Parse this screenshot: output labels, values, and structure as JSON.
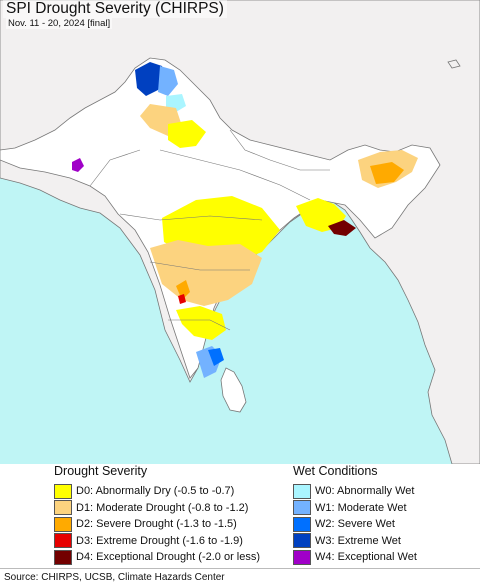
{
  "map": {
    "title": "SPI Drought Severity (CHIRPS)",
    "subtitle": "Nov. 11 - 20, 2024 [final]",
    "colors": {
      "ocean": "#bff5f5",
      "land_outside": "#f2f0f0",
      "land_normal": "#ffffff",
      "border": "#777777"
    }
  },
  "legend": {
    "drought": {
      "title": "Drought Severity",
      "items": [
        {
          "label": "D0: Abnormally Dry (-0.5 to -0.7)",
          "color": "#ffff00"
        },
        {
          "label": "D1: Moderate Drought (-0.8 to -1.2)",
          "color": "#fcd37f"
        },
        {
          "label": "D2: Severe Drought (-1.3 to -1.5)",
          "color": "#ffaa00"
        },
        {
          "label": "D3: Extreme Drought (-1.6 to -1.9)",
          "color": "#e60000"
        },
        {
          "label": "D4: Exceptional Drought (-2.0 or less)",
          "color": "#730000"
        }
      ]
    },
    "wet": {
      "title": "Wet Conditions",
      "items": [
        {
          "label": "W0: Abnormally Wet",
          "color": "#aaf5ff"
        },
        {
          "label": "W1: Moderate Wet",
          "color": "#73b2ff"
        },
        {
          "label": "W2: Severe Wet",
          "color": "#0070ff"
        },
        {
          "label": "W3: Extreme Wet",
          "color": "#0040c0"
        },
        {
          "label": "W4: Exceptional Wet",
          "color": "#a000c8"
        }
      ]
    }
  },
  "footer": {
    "source": "Source: CHIRPS, UCSB, Climate Hazards Center"
  }
}
